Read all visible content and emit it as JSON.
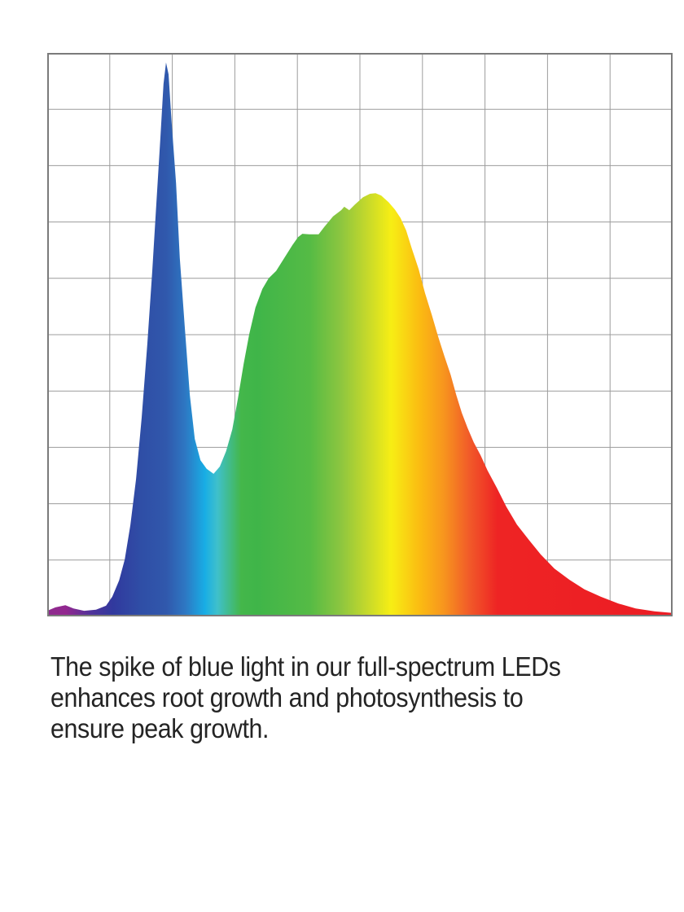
{
  "page": {
    "background": "#FFFFFF"
  },
  "caption": {
    "lines": [
      "The spike of blue light in our full-spectrum LEDs",
      "enhances root growth and photosynthesis to",
      "ensure peak growth."
    ],
    "text_color": "#242424"
  },
  "chart_data": {
    "type": "area",
    "title": "",
    "xlabel": "",
    "ylabel": "",
    "legend": "none",
    "axis_tick_labels": "none visible",
    "x_units": "normalized position across visible spectrum (violet to red, left to right)",
    "y_units": "relative intensity, normalized 0-1",
    "xlim": [
      0,
      1
    ],
    "ylim": [
      0,
      1
    ],
    "grid": {
      "cols": 10,
      "rows": 10,
      "grid_color": "#9C9C9C",
      "border_color": "#7B7B7B"
    },
    "key_features": {
      "blue_spike": {
        "x": 0.19,
        "intensity": 0.983
      },
      "valley": {
        "x": 0.266,
        "intensity": 0.253
      },
      "broad_peak": {
        "x": 0.525,
        "intensity": 0.751
      },
      "red_tail_end": {
        "x": 1.0,
        "intensity": 0.006
      }
    },
    "gradient_stops": [
      [
        0.0,
        "#8E2B8E"
      ],
      [
        0.03,
        "#92278F"
      ],
      [
        0.07,
        "#50339A"
      ],
      [
        0.105,
        "#31399E"
      ],
      [
        0.15,
        "#2F4EA6"
      ],
      [
        0.19,
        "#3058AC"
      ],
      [
        0.22,
        "#2E76C2"
      ],
      [
        0.252,
        "#18ADE5"
      ],
      [
        0.272,
        "#3FC0CB"
      ],
      [
        0.31,
        "#44B74A"
      ],
      [
        0.335,
        "#3FB549"
      ],
      [
        0.42,
        "#55BB45"
      ],
      [
        0.47,
        "#8DC63F"
      ],
      [
        0.51,
        "#C3D82C"
      ],
      [
        0.55,
        "#F7EE14"
      ],
      [
        0.595,
        "#FBBC12"
      ],
      [
        0.635,
        "#F7941E"
      ],
      [
        0.675,
        "#F15A29"
      ],
      [
        0.72,
        "#EE2424"
      ],
      [
        1.0,
        "#EC1C24"
      ]
    ],
    "points": [
      [
        0.0,
        0.01
      ],
      [
        0.013,
        0.016
      ],
      [
        0.029,
        0.02
      ],
      [
        0.042,
        0.014
      ],
      [
        0.059,
        0.01
      ],
      [
        0.078,
        0.012
      ],
      [
        0.094,
        0.019
      ],
      [
        0.104,
        0.035
      ],
      [
        0.115,
        0.064
      ],
      [
        0.124,
        0.101
      ],
      [
        0.133,
        0.162
      ],
      [
        0.142,
        0.244
      ],
      [
        0.151,
        0.353
      ],
      [
        0.16,
        0.483
      ],
      [
        0.168,
        0.613
      ],
      [
        0.174,
        0.723
      ],
      [
        0.181,
        0.85
      ],
      [
        0.186,
        0.945
      ],
      [
        0.19,
        0.983
      ],
      [
        0.194,
        0.962
      ],
      [
        0.199,
        0.876
      ],
      [
        0.206,
        0.769
      ],
      [
        0.212,
        0.636
      ],
      [
        0.22,
        0.512
      ],
      [
        0.228,
        0.393
      ],
      [
        0.236,
        0.315
      ],
      [
        0.245,
        0.277
      ],
      [
        0.255,
        0.262
      ],
      [
        0.266,
        0.253
      ],
      [
        0.276,
        0.266
      ],
      [
        0.286,
        0.293
      ],
      [
        0.296,
        0.332
      ],
      [
        0.305,
        0.387
      ],
      [
        0.314,
        0.448
      ],
      [
        0.323,
        0.501
      ],
      [
        0.333,
        0.548
      ],
      [
        0.344,
        0.581
      ],
      [
        0.354,
        0.6
      ],
      [
        0.366,
        0.613
      ],
      [
        0.379,
        0.636
      ],
      [
        0.392,
        0.659
      ],
      [
        0.401,
        0.673
      ],
      [
        0.408,
        0.679
      ],
      [
        0.419,
        0.678
      ],
      [
        0.434,
        0.678
      ],
      [
        0.443,
        0.691
      ],
      [
        0.457,
        0.71
      ],
      [
        0.47,
        0.721
      ],
      [
        0.475,
        0.727
      ],
      [
        0.483,
        0.721
      ],
      [
        0.492,
        0.731
      ],
      [
        0.505,
        0.744
      ],
      [
        0.516,
        0.75
      ],
      [
        0.525,
        0.751
      ],
      [
        0.534,
        0.747
      ],
      [
        0.546,
        0.735
      ],
      [
        0.556,
        0.722
      ],
      [
        0.565,
        0.707
      ],
      [
        0.574,
        0.685
      ],
      [
        0.583,
        0.653
      ],
      [
        0.594,
        0.616
      ],
      [
        0.604,
        0.574
      ],
      [
        0.615,
        0.535
      ],
      [
        0.625,
        0.497
      ],
      [
        0.635,
        0.462
      ],
      [
        0.645,
        0.429
      ],
      [
        0.654,
        0.393
      ],
      [
        0.663,
        0.361
      ],
      [
        0.672,
        0.335
      ],
      [
        0.682,
        0.309
      ],
      [
        0.693,
        0.286
      ],
      [
        0.704,
        0.259
      ],
      [
        0.719,
        0.228
      ],
      [
        0.734,
        0.195
      ],
      [
        0.751,
        0.163
      ],
      [
        0.77,
        0.136
      ],
      [
        0.789,
        0.11
      ],
      [
        0.811,
        0.085
      ],
      [
        0.835,
        0.065
      ],
      [
        0.859,
        0.048
      ],
      [
        0.885,
        0.035
      ],
      [
        0.913,
        0.023
      ],
      [
        0.941,
        0.014
      ],
      [
        0.971,
        0.009
      ],
      [
        1.0,
        0.006
      ]
    ]
  }
}
